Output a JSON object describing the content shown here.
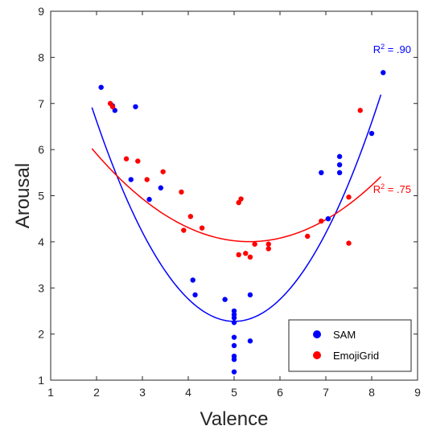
{
  "chart_data": {
    "type": "scatter",
    "xlabel": "Valence",
    "ylabel": "Arousal",
    "xlim": [
      1,
      9
    ],
    "ylim": [
      1,
      9
    ],
    "xticks": [
      "1",
      "2",
      "3",
      "4",
      "5",
      "6",
      "7",
      "8",
      "9"
    ],
    "yticks": [
      "1",
      "2",
      "3",
      "4",
      "5",
      "6",
      "7",
      "8",
      "9"
    ],
    "grid": false,
    "legend_position": "bottom-right",
    "series": [
      {
        "name": "SAM",
        "color": "#0000ff",
        "points": [
          [
            2.1,
            7.35
          ],
          [
            2.35,
            6.95
          ],
          [
            2.4,
            6.85
          ],
          [
            2.75,
            5.35
          ],
          [
            2.85,
            6.93
          ],
          [
            3.15,
            4.92
          ],
          [
            3.4,
            5.17
          ],
          [
            4.1,
            3.17
          ],
          [
            4.15,
            2.85
          ],
          [
            4.8,
            2.75
          ],
          [
            5.0,
            2.5
          ],
          [
            5.0,
            2.42
          ],
          [
            5.0,
            2.35
          ],
          [
            5.0,
            2.25
          ],
          [
            5.0,
            1.93
          ],
          [
            5.0,
            1.75
          ],
          [
            5.0,
            1.52
          ],
          [
            5.0,
            1.45
          ],
          [
            5.0,
            1.18
          ],
          [
            5.35,
            2.85
          ],
          [
            5.35,
            1.85
          ],
          [
            6.9,
            5.5
          ],
          [
            7.05,
            4.5
          ],
          [
            7.3,
            5.85
          ],
          [
            7.3,
            5.67
          ],
          [
            7.3,
            5.5
          ],
          [
            8.0,
            6.35
          ],
          [
            8.25,
            7.67
          ]
        ],
        "fit": {
          "label": "R² = .90",
          "coef": [
            0.4813,
            -4.8171,
            14.3283
          ],
          "xrange": [
            1.9,
            8.2
          ]
        }
      },
      {
        "name": "EmojiGrid",
        "color": "#ff0000",
        "points": [
          [
            2.3,
            7.0
          ],
          [
            2.35,
            6.93
          ],
          [
            2.65,
            5.8
          ],
          [
            2.9,
            5.75
          ],
          [
            3.1,
            5.35
          ],
          [
            3.45,
            5.52
          ],
          [
            3.85,
            5.08
          ],
          [
            3.9,
            4.25
          ],
          [
            4.05,
            4.55
          ],
          [
            4.3,
            4.3
          ],
          [
            5.1,
            4.85
          ],
          [
            5.15,
            4.93
          ],
          [
            5.1,
            3.72
          ],
          [
            5.25,
            3.75
          ],
          [
            5.35,
            3.67
          ],
          [
            5.45,
            3.95
          ],
          [
            5.75,
            3.95
          ],
          [
            5.75,
            3.85
          ],
          [
            6.6,
            4.12
          ],
          [
            6.9,
            4.45
          ],
          [
            7.5,
            4.97
          ],
          [
            7.5,
            3.97
          ],
          [
            7.75,
            6.85
          ]
        ],
        "fit": {
          "label": "R² = .75",
          "coef": [
            0.1714,
            -1.8276,
            8.8757
          ],
          "xrange": [
            1.9,
            8.2
          ]
        }
      }
    ]
  }
}
